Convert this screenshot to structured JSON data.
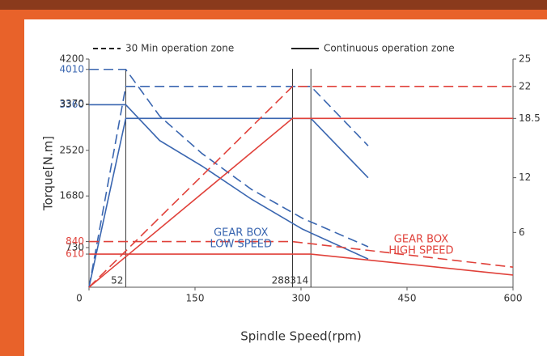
{
  "chart_data": {
    "type": "line",
    "legend": [
      {
        "label": "30 Min operation zone",
        "dash": true
      },
      {
        "label": "Continuous operation zone",
        "dash": false
      }
    ],
    "ylabel": "Torque[N.m]",
    "xlabel": "Spindle Speed(rpm)",
    "xlim": [
      0,
      600
    ],
    "xticks": [
      0,
      150,
      300,
      450,
      600
    ],
    "ylim": [
      0,
      4200
    ],
    "yticks": [
      610,
      730,
      840,
      1680,
      2520,
      3360,
      3370,
      4010,
      4200
    ],
    "ytick_colors": [
      "#e0413a",
      "#333333",
      "#e0413a",
      "#333333",
      "#333333",
      "#3a66b0",
      "#333333",
      "#3a66b0",
      "#333333"
    ],
    "y2lim": [
      0,
      25
    ],
    "y2ticks": [
      6,
      12,
      18.5,
      22,
      25
    ],
    "reference_lines": [
      52,
      288,
      314
    ],
    "annotations": [
      {
        "lines": [
          "GEAR BOX",
          "LOW SPEED"
        ],
        "color": "#3a66b0",
        "x": 215,
        "y": 1000
      },
      {
        "lines": [
          "GEAR BOX",
          "HIGH SPEED"
        ],
        "color": "#e0413a",
        "x": 470,
        "y": 880
      }
    ],
    "series": [
      {
        "color": "#3a66b0",
        "dash": true,
        "axis": "y",
        "x": [
          0,
          52,
          100,
          160,
          230,
          302,
          395
        ],
        "values": [
          4010,
          4010,
          3150,
          2460,
          1800,
          1270,
          745
        ]
      },
      {
        "color": "#3a66b0",
        "dash": false,
        "axis": "y",
        "x": [
          0,
          52,
          100,
          160,
          230,
          302,
          395
        ],
        "values": [
          3360,
          3360,
          2700,
          2230,
          1620,
          1070,
          520
        ]
      },
      {
        "color": "#3a66b0",
        "dash": true,
        "axis": "y2",
        "x": [
          0,
          52,
          314,
          395
        ],
        "values": [
          0,
          22,
          22,
          15.5
        ]
      },
      {
        "color": "#3a66b0",
        "dash": false,
        "axis": "y2",
        "x": [
          0,
          52,
          314,
          395
        ],
        "values": [
          0,
          18.5,
          18.5,
          12
        ]
      },
      {
        "color": "#e0413a",
        "dash": true,
        "axis": "y2",
        "x": [
          0,
          288,
          600
        ],
        "values": [
          0,
          22,
          22
        ]
      },
      {
        "color": "#e0413a",
        "dash": false,
        "axis": "y2",
        "x": [
          0,
          288,
          600
        ],
        "values": [
          0,
          18.5,
          18.5
        ]
      },
      {
        "color": "#e0413a",
        "dash": true,
        "axis": "y",
        "x": [
          0,
          288,
          600
        ],
        "values": [
          840,
          840,
          370
        ]
      },
      {
        "color": "#e0413a",
        "dash": false,
        "axis": "y",
        "x": [
          0,
          314,
          600
        ],
        "values": [
          610,
          610,
          225
        ]
      }
    ]
  }
}
